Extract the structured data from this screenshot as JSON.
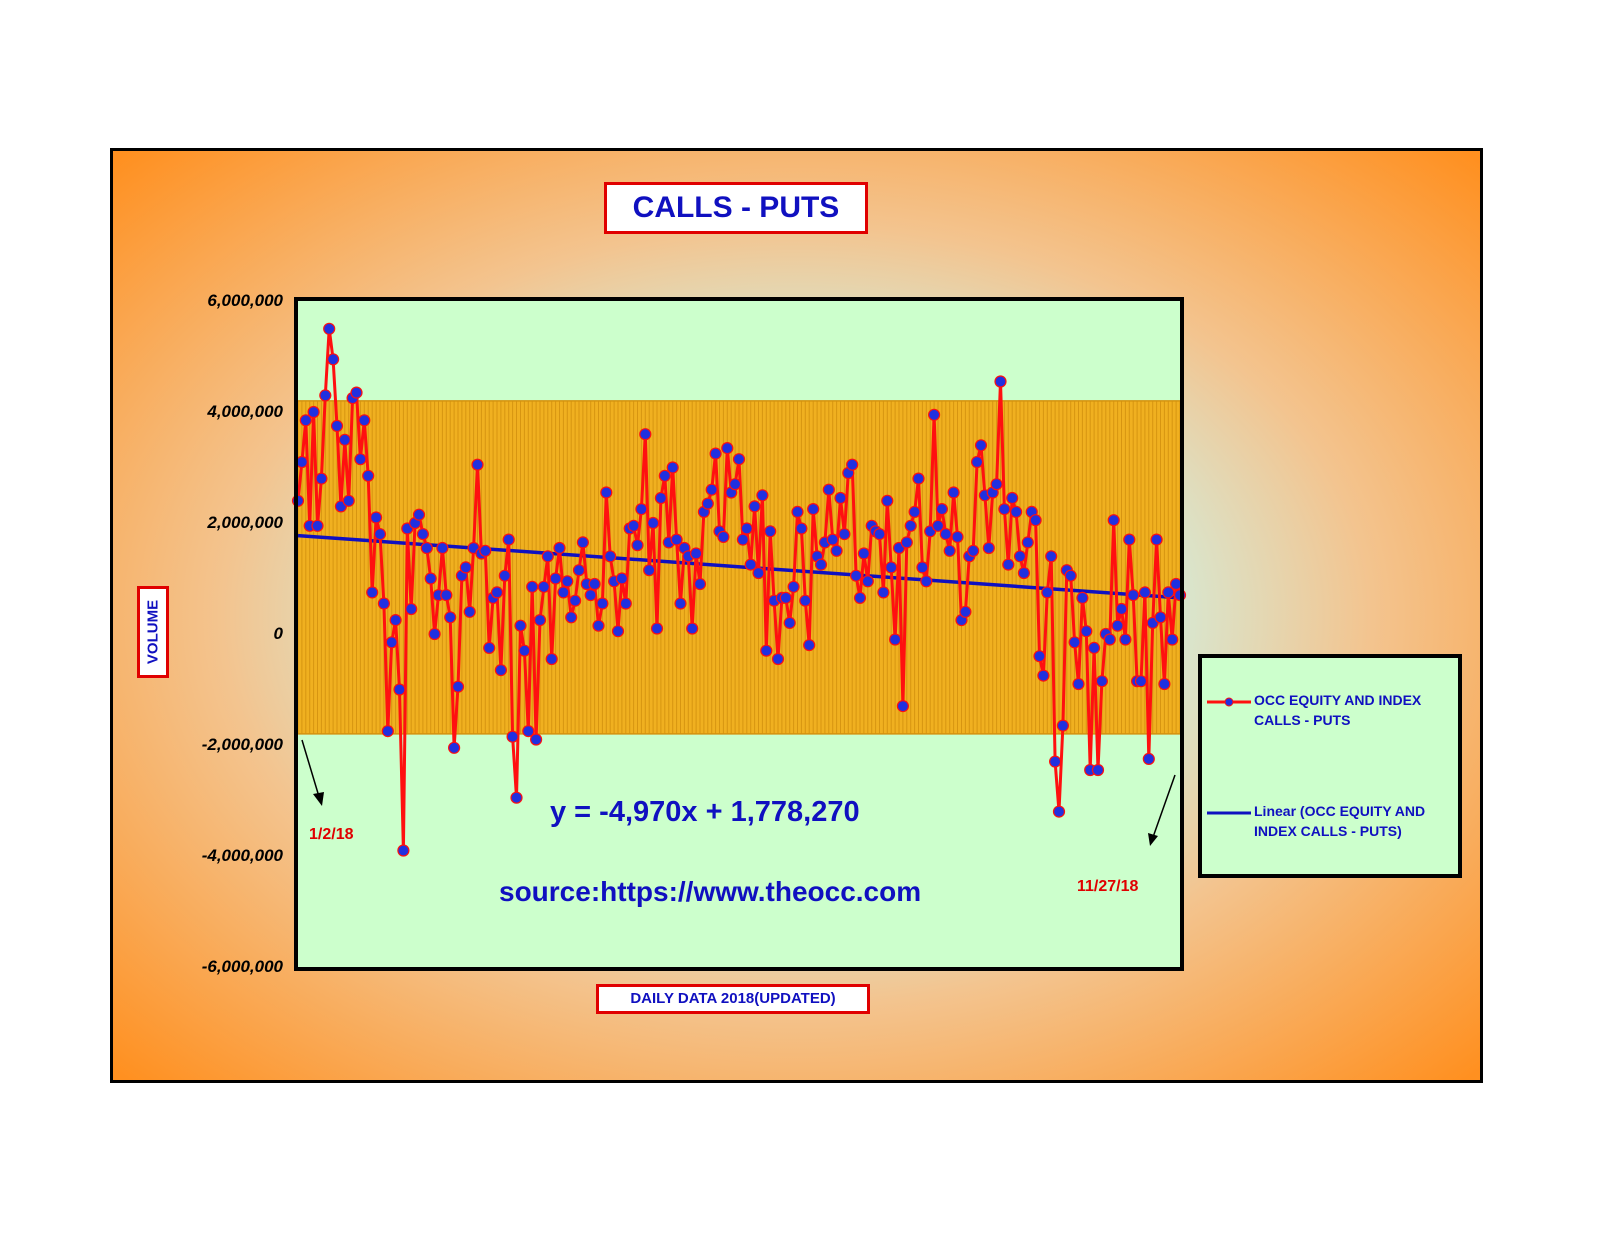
{
  "colors": {
    "frame_orange": "#ff9020",
    "frame_center": "#c8fbf5",
    "plot_bg": "#ccffcc",
    "band_fill": "#f0b020",
    "band_line": "#d4920f",
    "series": "#ff1010",
    "marker": "#2030e0",
    "trend": "#1010c0",
    "accent_red": "#e00000"
  },
  "annotations": {
    "start_date": "1/2/18",
    "end_date": "11/27/18",
    "equation": "y = -4,970x + 1,778,270",
    "source": "source:https://www.theocc.com"
  },
  "chart_data": {
    "type": "line",
    "title": "CALLS - PUTS",
    "xlabel": "DAILY DATA 2018(UPDATED)",
    "ylabel": "VOLUME",
    "ylim": [
      -6000000,
      6000000
    ],
    "yticks": [
      6000000,
      4000000,
      2000000,
      0,
      -2000000,
      -4000000,
      -6000000
    ],
    "ytick_labels": [
      "6,000,000",
      "4,000,000",
      "2,000,000",
      "0",
      "-2,000,000",
      "-4,000,000",
      "-6,000,000"
    ],
    "band": {
      "upper": 4200000,
      "lower": -1800000
    },
    "legend_position": "right",
    "legend": [
      {
        "label": "OCC EQUITY AND INDEX CALLS - PUTS",
        "kind": "series"
      },
      {
        "label": "Linear (OCC EQUITY AND INDEX CALLS - PUTS)",
        "kind": "trend"
      }
    ],
    "trend": {
      "slope": -4970,
      "intercept": 1778270
    },
    "series": [
      {
        "name": "OCC EQUITY AND INDEX CALLS - PUTS",
        "values": [
          2400000,
          3100000,
          3850000,
          1950000,
          4000000,
          1950000,
          2800000,
          4300000,
          5500000,
          4950000,
          3750000,
          2300000,
          3500000,
          2400000,
          4250000,
          4350000,
          3150000,
          3850000,
          2850000,
          750000,
          2100000,
          1800000,
          550000,
          -1750000,
          -150000,
          250000,
          -1000000,
          -3900000,
          1900000,
          450000,
          2000000,
          2150000,
          1800000,
          1550000,
          1000000,
          0,
          700000,
          1550000,
          700000,
          300000,
          -2050000,
          -950000,
          1050000,
          1200000,
          400000,
          1550000,
          3050000,
          1450000,
          1500000,
          -250000,
          650000,
          750000,
          -650000,
          1050000,
          1700000,
          -1850000,
          -2950000,
          150000,
          -300000,
          -1750000,
          850000,
          -1900000,
          250000,
          850000,
          1400000,
          -450000,
          1000000,
          1550000,
          750000,
          950000,
          300000,
          600000,
          1150000,
          1650000,
          900000,
          700000,
          900000,
          150000,
          550000,
          2550000,
          1400000,
          950000,
          50000,
          1000000,
          550000,
          1900000,
          1950000,
          1600000,
          2250000,
          3600000,
          1150000,
          2000000,
          100000,
          2450000,
          2850000,
          1650000,
          3000000,
          1700000,
          550000,
          1550000,
          1400000,
          100000,
          1450000,
          900000,
          2200000,
          2350000,
          2600000,
          3250000,
          1850000,
          1750000,
          3350000,
          2550000,
          2700000,
          3150000,
          1700000,
          1900000,
          1250000,
          2300000,
          1100000,
          2500000,
          -300000,
          1850000,
          600000,
          -450000,
          650000,
          650000,
          200000,
          850000,
          2200000,
          1900000,
          600000,
          -200000,
          2250000,
          1400000,
          1250000,
          1650000,
          2600000,
          1700000,
          1500000,
          2450000,
          1800000,
          2900000,
          3050000,
          1050000,
          650000,
          1450000,
          950000,
          1950000,
          1850000,
          1800000,
          750000,
          2400000,
          1200000,
          -100000,
          1550000,
          -1300000,
          1650000,
          1950000,
          2200000,
          2800000,
          1200000,
          950000,
          1850000,
          3950000,
          1950000,
          2250000,
          1800000,
          1500000,
          2550000,
          1750000,
          250000,
          400000,
          1400000,
          1500000,
          3100000,
          3400000,
          2500000,
          1550000,
          2550000,
          2700000,
          4550000,
          2250000,
          1250000,
          2450000,
          2200000,
          1400000,
          1100000,
          1650000,
          2200000,
          2050000,
          -400000,
          -750000,
          750000,
          1400000,
          -2300000,
          -3200000,
          -1650000,
          1150000,
          1050000,
          -150000,
          -900000,
          650000,
          50000,
          -2450000,
          -250000,
          -2450000,
          -850000,
          0,
          -100000,
          2050000,
          150000,
          450000,
          -100000,
          1700000,
          700000,
          -850000,
          -850000,
          750000,
          -2250000,
          200000,
          1700000,
          300000,
          -900000,
          750000,
          -100000,
          900000,
          700000
        ]
      }
    ]
  }
}
